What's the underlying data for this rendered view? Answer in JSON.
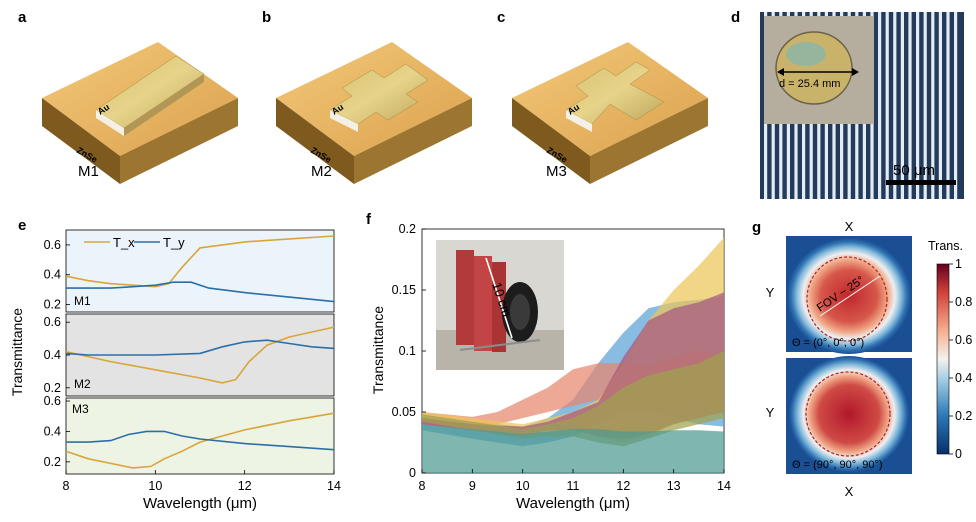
{
  "panels": {
    "a": {
      "label": "a",
      "name": "M1",
      "au": "Au",
      "sub": "ZnSe"
    },
    "b": {
      "label": "b",
      "name": "M2",
      "au": "Au",
      "sub": "ZnSe"
    },
    "c": {
      "label": "c",
      "name": "M3",
      "au": "Au",
      "sub": "ZnSe"
    },
    "d": {
      "label": "d",
      "diameter": "d = 25.4 mm",
      "scalebar": "50 μm"
    },
    "e": {
      "label": "e"
    },
    "f": {
      "label": "f",
      "inset_label": "10 cm"
    },
    "g": {
      "label": "g",
      "top_label": "X",
      "bottom_label": "X",
      "y_label": "Y",
      "fov": "FOV ~ 25°",
      "theta1": "Θ = (0°, 0°, 0°)",
      "theta2": "Θ = (90°, 90°, 90°)",
      "colorbar_title": "Trans.",
      "colorbar_ticks": [
        "1",
        "0.8",
        "0.6",
        "0.4",
        "0.2",
        "0"
      ]
    }
  },
  "colors": {
    "tx": "#D9A53B",
    "ty": "#2C6FA8",
    "m1_bg": "#EAF4FA",
    "m2_bg": "#E3E3E3",
    "m3_bg": "#EDF4E3",
    "blue_band": "#5AA2D6",
    "red_band": "#E8876E",
    "yellow_band": "#EBC65A",
    "purple_band": "#A8587E",
    "olive_band": "#9FA24E",
    "teal_band": "#4E9A92"
  },
  "chart_data": [
    {
      "type": "line",
      "panel": "e",
      "ylabel": "Transmittance",
      "xlabel": "Wavelength (μm)",
      "xlim": [
        8,
        14
      ],
      "x_ticks": [
        "8",
        "10",
        "12",
        "14"
      ],
      "legend": {
        "position": "top-left",
        "entries": [
          "T_x",
          "T_y"
        ]
      },
      "subplots": [
        {
          "name": "M1",
          "ylim": [
            0.15,
            0.7
          ],
          "y_ticks": [
            "0.2",
            "0.4",
            "0.6"
          ],
          "series": [
            {
              "name": "T_x",
              "x": [
                8,
                8.5,
                9,
                9.5,
                10,
                10.3,
                10.6,
                11,
                12,
                13,
                14
              ],
              "y": [
                0.39,
                0.36,
                0.34,
                0.33,
                0.32,
                0.34,
                0.45,
                0.58,
                0.62,
                0.64,
                0.66
              ]
            },
            {
              "name": "T_y",
              "x": [
                8,
                8.5,
                9,
                9.5,
                10,
                10.4,
                10.8,
                11.2,
                12,
                13,
                14
              ],
              "y": [
                0.31,
                0.31,
                0.31,
                0.32,
                0.33,
                0.35,
                0.35,
                0.31,
                0.28,
                0.25,
                0.22
              ]
            }
          ]
        },
        {
          "name": "M2",
          "ylim": [
            0.15,
            0.65
          ],
          "y_ticks": [
            "0.2",
            "0.4",
            "0.6"
          ],
          "series": [
            {
              "name": "T_x",
              "x": [
                8,
                8.5,
                9,
                10,
                11,
                11.5,
                11.8,
                12.1,
                12.5,
                13,
                14
              ],
              "y": [
                0.42,
                0.39,
                0.36,
                0.31,
                0.26,
                0.23,
                0.25,
                0.36,
                0.46,
                0.51,
                0.57
              ]
            },
            {
              "name": "T_y",
              "x": [
                8,
                8.5,
                9,
                10,
                11,
                11.5,
                12,
                12.5,
                13,
                13.5,
                14
              ],
              "y": [
                0.41,
                0.4,
                0.4,
                0.4,
                0.41,
                0.45,
                0.48,
                0.49,
                0.47,
                0.45,
                0.44
              ]
            }
          ]
        },
        {
          "name": "M3",
          "ylim": [
            0.12,
            0.62
          ],
          "y_ticks": [
            "0.2",
            "0.4",
            "0.6"
          ],
          "series": [
            {
              "name": "T_x",
              "x": [
                8,
                8.5,
                9,
                9.5,
                9.9,
                10.2,
                10.6,
                11,
                12,
                13,
                14
              ],
              "y": [
                0.27,
                0.22,
                0.19,
                0.16,
                0.17,
                0.22,
                0.27,
                0.33,
                0.41,
                0.47,
                0.52
              ]
            },
            {
              "name": "T_y",
              "x": [
                8,
                8.5,
                9,
                9.4,
                9.8,
                10.2,
                10.6,
                11,
                12,
                13,
                14
              ],
              "y": [
                0.33,
                0.33,
                0.34,
                0.38,
                0.4,
                0.4,
                0.37,
                0.35,
                0.32,
                0.3,
                0.28
              ]
            }
          ]
        }
      ]
    },
    {
      "type": "area",
      "panel": "f",
      "ylabel": "Transmittance",
      "xlabel": "Wavelength (μm)",
      "xlim": [
        8,
        14
      ],
      "ylim": [
        0,
        0.2
      ],
      "x_ticks": [
        "8",
        "9",
        "10",
        "11",
        "12",
        "13",
        "14"
      ],
      "y_ticks": [
        "0",
        "0.05",
        "0.1",
        "0.15",
        "0.2"
      ],
      "bands": [
        {
          "color": "blue",
          "x": [
            8,
            9,
            10,
            10.5,
            11,
            11.5,
            12,
            12.5,
            13,
            13.5,
            14
          ],
          "upper": [
            0.048,
            0.042,
            0.038,
            0.045,
            0.06,
            0.09,
            0.115,
            0.135,
            0.14,
            0.142,
            0.145
          ],
          "lower": [
            0.035,
            0.028,
            0.022,
            0.025,
            0.03,
            0.04,
            0.05,
            0.05,
            0.045,
            0.04,
            0.038
          ]
        },
        {
          "color": "red",
          "x": [
            8,
            9,
            9.5,
            10,
            10.5,
            11,
            11.5,
            12,
            12.5,
            13,
            13.5,
            14
          ],
          "upper": [
            0.05,
            0.046,
            0.05,
            0.06,
            0.07,
            0.085,
            0.09,
            0.09,
            0.088,
            0.095,
            0.1,
            0.095
          ],
          "lower": [
            0.04,
            0.035,
            0.04,
            0.045,
            0.05,
            0.055,
            0.06,
            0.058,
            0.056,
            0.058,
            0.06,
            0.058
          ]
        },
        {
          "color": "yellow",
          "x": [
            8,
            9,
            10,
            10.5,
            11,
            11.5,
            12,
            12.5,
            13,
            13.5,
            14
          ],
          "upper": [
            0.05,
            0.045,
            0.04,
            0.045,
            0.05,
            0.06,
            0.09,
            0.125,
            0.15,
            0.17,
            0.193
          ],
          "lower": [
            0.045,
            0.04,
            0.035,
            0.04,
            0.04,
            0.03,
            0.025,
            0.03,
            0.04,
            0.045,
            0.05
          ]
        },
        {
          "color": "purple",
          "x": [
            8,
            9,
            10,
            10.5,
            11,
            11.5,
            12,
            12.5,
            13,
            13.5,
            14
          ],
          "upper": [
            0.045,
            0.04,
            0.038,
            0.042,
            0.05,
            0.058,
            0.095,
            0.125,
            0.135,
            0.14,
            0.148
          ],
          "lower": [
            0.04,
            0.035,
            0.03,
            0.035,
            0.035,
            0.03,
            0.028,
            0.032,
            0.04,
            0.045,
            0.05
          ]
        },
        {
          "color": "olive",
          "x": [
            8,
            9,
            10,
            10.5,
            11,
            11.5,
            12,
            12.5,
            13,
            13.5,
            14
          ],
          "upper": [
            0.048,
            0.042,
            0.036,
            0.04,
            0.045,
            0.055,
            0.07,
            0.08,
            0.085,
            0.09,
            0.1
          ],
          "lower": [
            0.042,
            0.035,
            0.028,
            0.03,
            0.03,
            0.025,
            0.022,
            0.028,
            0.035,
            0.04,
            0.045
          ]
        },
        {
          "color": "teal",
          "x": [
            8,
            9,
            10,
            10.5,
            11,
            11.5,
            12,
            12.5,
            13,
            13.5,
            14
          ],
          "upper": [
            0.04,
            0.036,
            0.032,
            0.034,
            0.036,
            0.036,
            0.034,
            0.034,
            0.035,
            0.035,
            0.034
          ],
          "lower": [
            0,
            0,
            0,
            0,
            0,
            0,
            0,
            0,
            0,
            0,
            0
          ]
        }
      ]
    },
    {
      "type": "heatmap",
      "panel": "g",
      "colorbar": {
        "title": "Trans.",
        "range": [
          0,
          1
        ]
      },
      "maps": [
        {
          "theta": "Θ = (0°, 0°, 0°)",
          "center_value": 0.85,
          "edge_value": 0.4,
          "background_value": 0.05,
          "fov": "FOV ~ 25°"
        },
        {
          "theta": "Θ = (90°, 90°, 90°)",
          "center_value": 0.9,
          "edge_value": 0.45,
          "background_value": 0.05
        }
      ]
    }
  ]
}
